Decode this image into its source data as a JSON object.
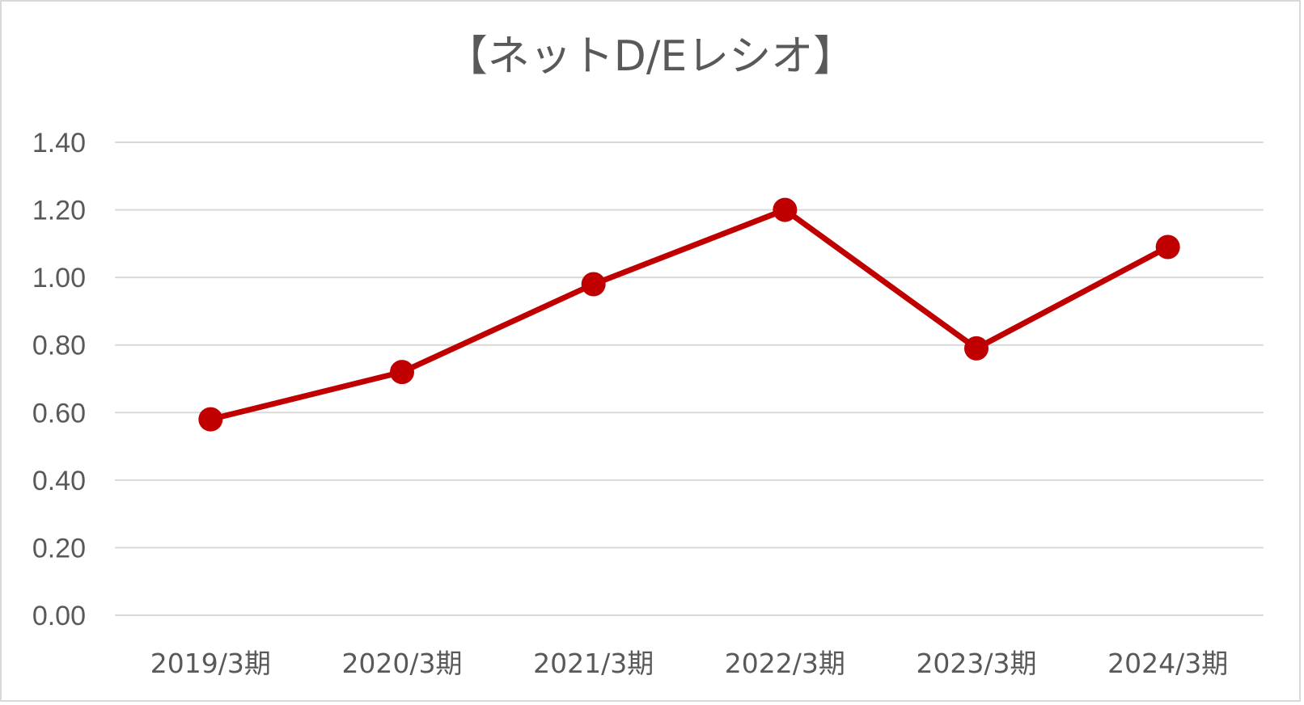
{
  "chart_data": {
    "type": "line",
    "title": "【ネットD/Eレシオ】",
    "categories": [
      "2019/3期",
      "2020/3期",
      "2021/3期",
      "2022/3期",
      "2023/3期",
      "2024/3期"
    ],
    "series": [
      {
        "values": [
          0.58,
          0.72,
          0.98,
          1.2,
          0.79,
          1.09
        ],
        "color": "#c00000"
      }
    ],
    "ylim": [
      0,
      1.4
    ],
    "yticks": [
      "0.00",
      "0.20",
      "0.40",
      "0.60",
      "0.80",
      "1.00",
      "1.20",
      "1.40"
    ],
    "grid": true,
    "legend": "none",
    "colors": {
      "series": "#c00000",
      "grid": "#d9d9d9",
      "text": "#595959"
    }
  }
}
